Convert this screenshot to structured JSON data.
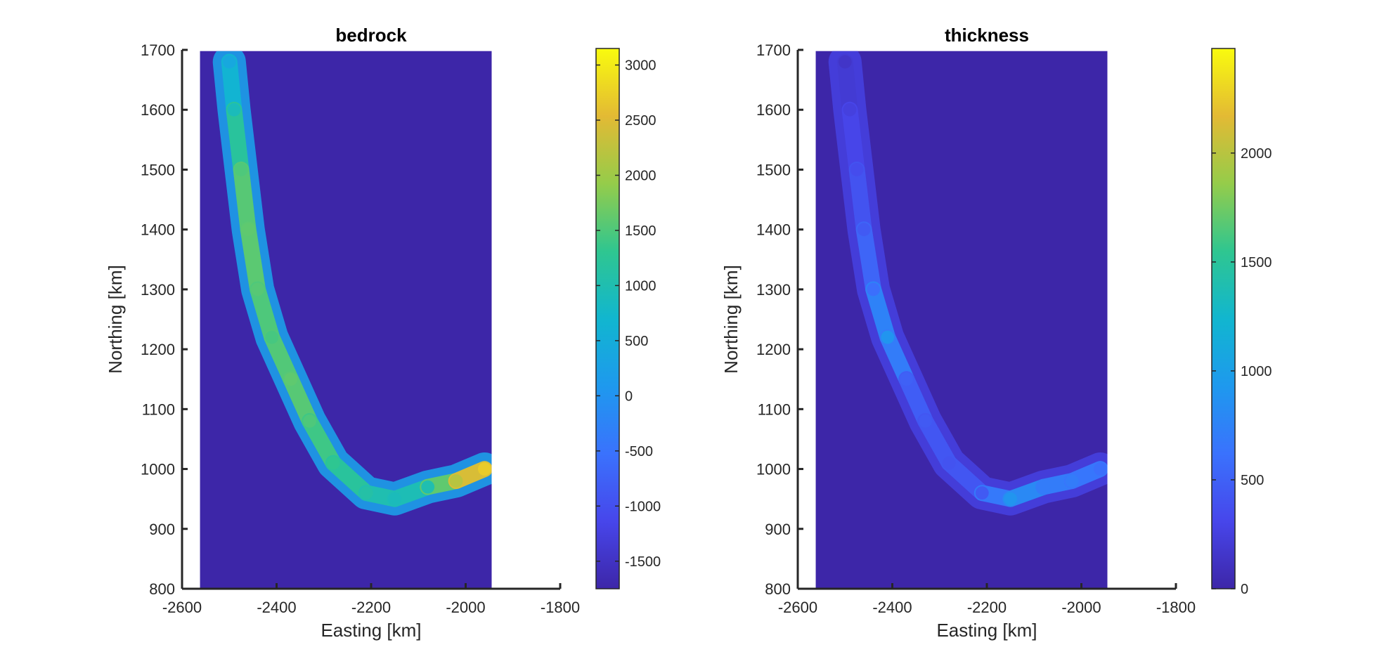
{
  "chart_data": [
    {
      "type": "heatmap",
      "title": "bedrock",
      "xlabel": "Easting [km]",
      "ylabel": "Northing [km]",
      "xlim": [
        -2600,
        -1800
      ],
      "ylim": [
        800,
        1700
      ],
      "xticks": [
        "-2600",
        "-2400",
        "-2200",
        "-2000",
        "-1800"
      ],
      "yticks": [
        "800",
        "900",
        "1000",
        "1100",
        "1200",
        "1300",
        "1400",
        "1500",
        "1600",
        "1700"
      ],
      "data_extent": {
        "x": [
          -2562,
          -1945
        ],
        "y": [
          800,
          1698
        ]
      },
      "colormap": "parula",
      "background_color": "#3D26A8",
      "colorbar": {
        "range": [
          -1750,
          3150
        ],
        "ticks": [
          -1500,
          -1000,
          -500,
          0,
          500,
          1000,
          1500,
          2000,
          2500,
          3000
        ],
        "tick_labels": [
          "-1500",
          "-1000",
          "-500",
          "0",
          "500",
          "1000",
          "1500",
          "2000",
          "2500",
          "3000"
        ]
      },
      "feature_ridge": [
        [
          -2500,
          1680
        ],
        [
          -2490,
          1600
        ],
        [
          -2475,
          1500
        ],
        [
          -2460,
          1400
        ],
        [
          -2440,
          1300
        ],
        [
          -2410,
          1220
        ],
        [
          -2370,
          1150
        ],
        [
          -2330,
          1080
        ],
        [
          -2280,
          1010
        ],
        [
          -2210,
          960
        ],
        [
          -2150,
          950
        ],
        [
          -2080,
          970
        ],
        [
          -2020,
          980
        ],
        [
          -1960,
          1000
        ]
      ],
      "feature_values": [
        400,
        900,
        1500,
        1600,
        1550,
        1450,
        1600,
        1500,
        1300,
        1100,
        900,
        1000,
        2200,
        2700
      ]
    },
    {
      "type": "heatmap",
      "title": "thickness",
      "xlabel": "Easting [km]",
      "ylabel": "Northing [km]",
      "xlim": [
        -2600,
        -1800
      ],
      "ylim": [
        800,
        1700
      ],
      "xticks": [
        "-2600",
        "-2400",
        "-2200",
        "-2000",
        "-1800"
      ],
      "yticks": [
        "800",
        "900",
        "1000",
        "1100",
        "1200",
        "1300",
        "1400",
        "1500",
        "1600",
        "1700"
      ],
      "data_extent": {
        "x": [
          -2562,
          -1945
        ],
        "y": [
          800,
          1698
        ]
      },
      "colormap": "parula",
      "background_color": "#3D26A8",
      "colorbar": {
        "range": [
          0,
          2480
        ],
        "ticks": [
          0,
          500,
          1000,
          1500,
          2000
        ],
        "tick_labels": [
          "0",
          "500",
          "1000",
          "1500",
          "2000"
        ]
      },
      "feature_ridge": [
        [
          -2500,
          1680
        ],
        [
          -2490,
          1600
        ],
        [
          -2475,
          1500
        ],
        [
          -2460,
          1400
        ],
        [
          -2440,
          1300
        ],
        [
          -2410,
          1220
        ],
        [
          -2370,
          1150
        ],
        [
          -2330,
          1080
        ],
        [
          -2280,
          1010
        ],
        [
          -2210,
          960
        ],
        [
          -2150,
          950
        ],
        [
          -2080,
          970
        ],
        [
          -2020,
          980
        ],
        [
          -1960,
          1000
        ]
      ],
      "feature_values": [
        150,
        250,
        350,
        450,
        600,
        900,
        500,
        450,
        400,
        450,
        900,
        700,
        700,
        600
      ]
    }
  ]
}
